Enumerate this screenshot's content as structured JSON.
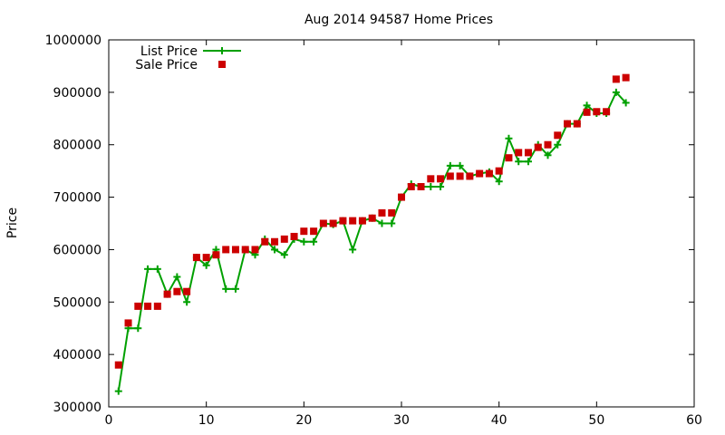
{
  "chart_data": {
    "type": "line",
    "title": "Aug 2014 94587 Home Prices",
    "xlabel": "",
    "ylabel": "Price",
    "xlim": [
      0,
      60
    ],
    "ylim": [
      300000,
      1000000
    ],
    "x_ticks": [
      0,
      10,
      20,
      30,
      40,
      50,
      60
    ],
    "y_ticks": [
      300000,
      400000,
      500000,
      600000,
      700000,
      800000,
      900000,
      1000000
    ],
    "grid": false,
    "legend_position": "top-left",
    "series": [
      {
        "name": "List Price",
        "style": "line+cross",
        "color": "#00a000",
        "x": [
          1,
          2,
          3,
          4,
          5,
          6,
          7,
          8,
          9,
          10,
          11,
          12,
          13,
          14,
          15,
          16,
          17,
          18,
          19,
          20,
          21,
          22,
          23,
          24,
          25,
          26,
          27,
          28,
          29,
          30,
          31,
          32,
          33,
          34,
          35,
          36,
          37,
          38,
          39,
          40,
          41,
          42,
          43,
          44,
          45,
          46,
          47,
          48,
          49,
          50,
          51,
          52,
          53
        ],
        "y": [
          330000,
          450000,
          450000,
          563000,
          563000,
          515000,
          548000,
          500000,
          585000,
          570000,
          600000,
          525000,
          525000,
          600000,
          590000,
          620000,
          600000,
          590000,
          620000,
          615000,
          615000,
          650000,
          648000,
          655000,
          600000,
          655000,
          660000,
          650000,
          650000,
          700000,
          725000,
          720000,
          720000,
          720000,
          760000,
          760000,
          740000,
          745000,
          748000,
          730000,
          812000,
          768000,
          768000,
          800000,
          780000,
          800000,
          840000,
          840000,
          875000,
          860000,
          860000,
          900000,
          880000
        ]
      },
      {
        "name": "Sale Price",
        "style": "square-points",
        "color": "#cc0000",
        "x": [
          1,
          2,
          3,
          4,
          5,
          6,
          7,
          8,
          9,
          10,
          11,
          12,
          13,
          14,
          15,
          16,
          17,
          18,
          19,
          20,
          21,
          22,
          23,
          24,
          25,
          26,
          27,
          28,
          29,
          30,
          31,
          32,
          33,
          34,
          35,
          36,
          37,
          38,
          39,
          40,
          41,
          42,
          43,
          44,
          45,
          46,
          47,
          48,
          49,
          50,
          51,
          52,
          53
        ],
        "y": [
          380000,
          460000,
          492000,
          492000,
          492000,
          515000,
          520000,
          520000,
          585000,
          585000,
          590000,
          600000,
          600000,
          600000,
          600000,
          615000,
          615000,
          620000,
          625000,
          635000,
          635000,
          650000,
          650000,
          655000,
          655000,
          655000,
          660000,
          670000,
          670000,
          700000,
          720000,
          720000,
          735000,
          735000,
          740000,
          740000,
          740000,
          745000,
          745000,
          750000,
          775000,
          785000,
          785000,
          795000,
          800000,
          818000,
          840000,
          840000,
          862000,
          863000,
          863000,
          925000,
          928000
        ]
      }
    ]
  }
}
